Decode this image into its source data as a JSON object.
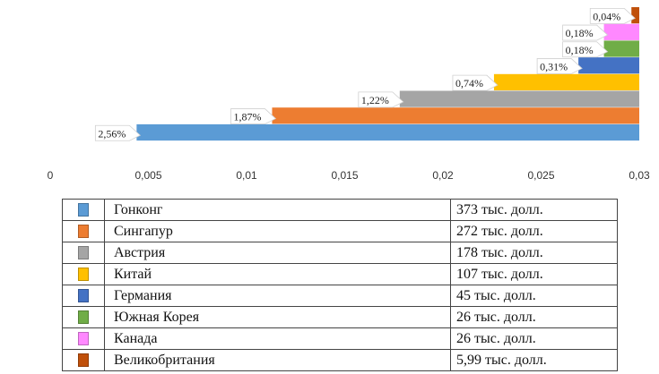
{
  "chart_data": {
    "type": "bar",
    "orientation": "horizontal",
    "x_axis_reversed": true,
    "xlim": [
      0,
      0.03
    ],
    "x_ticks": [
      "0",
      "0,005",
      "0,01",
      "0,015",
      "0,02",
      "0,025",
      "0,03"
    ],
    "grid": false,
    "categories": [
      "Гонконг",
      "Сингапур",
      "Австрия",
      "Китай",
      "Германия",
      "Южная Корея",
      "Канада",
      "Великобритания"
    ],
    "values": [
      0.0256,
      0.0187,
      0.0122,
      0.0074,
      0.0031,
      0.0018,
      0.0018,
      0.0004
    ],
    "data_labels": [
      "2,56%",
      "1,87%",
      "1,22%",
      "0,74%",
      "0,31%",
      "0,18%",
      "0,18%",
      "0,04%"
    ],
    "colors": [
      "#5b9bd5",
      "#ed7d31",
      "#a5a5a5",
      "#ffc000",
      "#4472c4",
      "#70ad47",
      "#ff88ff",
      "#c0500a"
    ]
  },
  "legend_table": [
    {
      "name": "Гонконг",
      "value": "373 тыс. долл.",
      "color": "#5b9bd5"
    },
    {
      "name": "Сингапур",
      "value": "272 тыс. долл.",
      "color": "#ed7d31"
    },
    {
      "name": "Австрия",
      "value": "178 тыс. долл.",
      "color": "#a5a5a5"
    },
    {
      "name": "Китай",
      "value": "107 тыс. долл.",
      "color": "#ffc000"
    },
    {
      "name": "Германия",
      "value": "45 тыс. долл.",
      "color": "#4472c4"
    },
    {
      "name": "Южная Корея",
      "value": "26 тыс. долл.",
      "color": "#70ad47"
    },
    {
      "name": "Канада",
      "value": "26 тыс. долл.",
      "color": "#ff88ff"
    },
    {
      "name": "Великобритания",
      "value": "5,99 тыс. долл.",
      "color": "#c0500a"
    }
  ]
}
